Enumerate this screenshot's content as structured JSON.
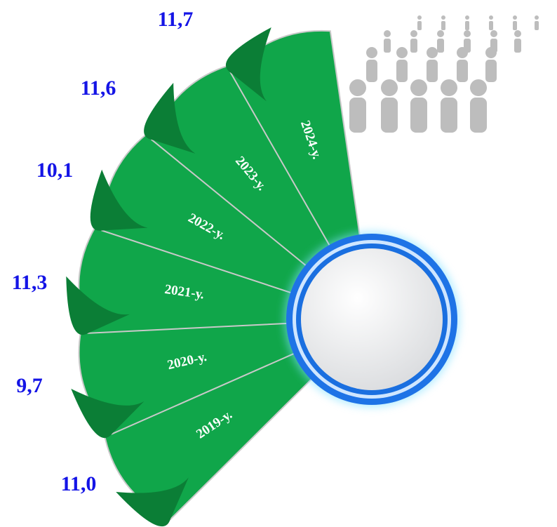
{
  "items": [
    {
      "year": "2019-у.",
      "value": "11,0"
    },
    {
      "year": "2020-у.",
      "value": "9,7"
    },
    {
      "year": "2021-у.",
      "value": "11,3"
    },
    {
      "year": "2022-у.",
      "value": "10,1"
    },
    {
      "year": "2023-у.",
      "value": "11,6"
    },
    {
      "year": "2024-у.",
      "value": "11,7"
    }
  ]
}
